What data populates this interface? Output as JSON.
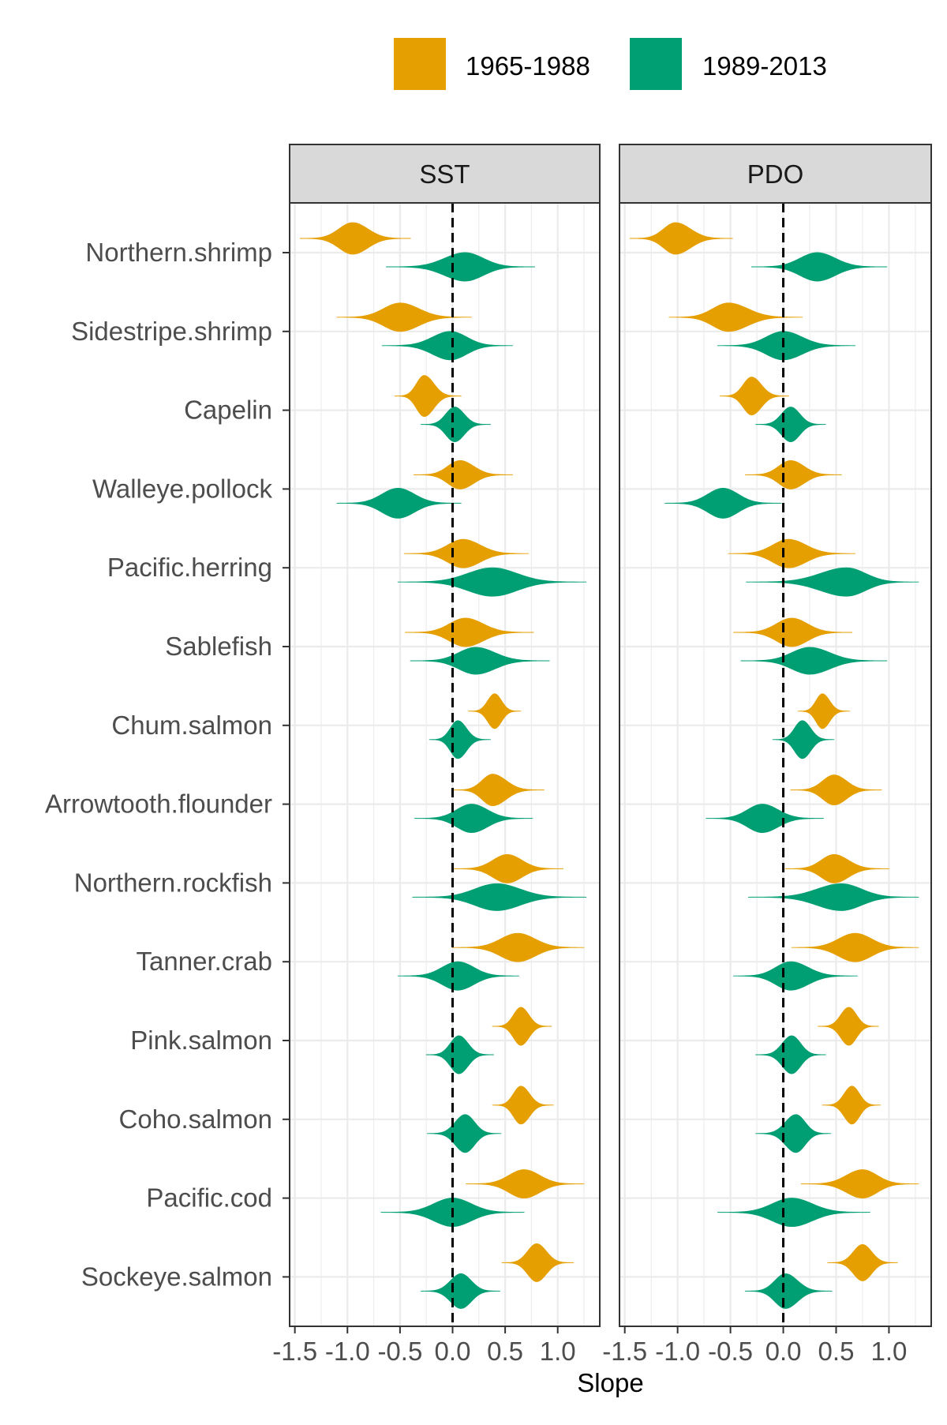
{
  "chart_data": {
    "type": "violin",
    "xlabel": "Slope",
    "ylabel": "",
    "xlim": [
      -1.55,
      1.4
    ],
    "x_ticks": [
      -1.5,
      -1.0,
      -0.5,
      0.0,
      0.5,
      1.0
    ],
    "x_tick_labels": [
      "-1.5",
      "-1.0",
      "-0.5",
      "0.0",
      "0.5",
      "1.0"
    ],
    "reference_line": 0,
    "grid": true,
    "legend": {
      "position": "top",
      "entries": [
        {
          "label": "1965-1988",
          "color": "#E69F00"
        },
        {
          "label": "1989-2013",
          "color": "#009E73"
        }
      ]
    },
    "panels": [
      {
        "title": "SST",
        "series": [
          {
            "name": "1965-1988",
            "color": "#E69F00",
            "values": [
              {
                "species": "Northern.shrimp",
                "median": -0.95,
                "low": -1.45,
                "high": -0.4,
                "width": 1.0
              },
              {
                "species": "Sidestripe.shrimp",
                "median": -0.5,
                "low": -1.1,
                "high": 0.18,
                "width": 0.9
              },
              {
                "species": "Capelin",
                "median": -0.27,
                "low": -0.55,
                "high": 0.08,
                "width": 1.3
              },
              {
                "species": "Walleye.pollock",
                "median": 0.07,
                "low": -0.37,
                "high": 0.57,
                "width": 0.9
              },
              {
                "species": "Pacific.herring",
                "median": 0.1,
                "low": -0.46,
                "high": 0.72,
                "width": 0.9
              },
              {
                "species": "Sablefish",
                "median": 0.12,
                "low": -0.45,
                "high": 0.77,
                "width": 0.9
              },
              {
                "species": "Chum.salmon",
                "median": 0.4,
                "low": 0.15,
                "high": 0.65,
                "width": 1.1
              },
              {
                "species": "Arrowtooth.flounder",
                "median": 0.38,
                "low": 0.0,
                "high": 0.87,
                "width": 1.0
              },
              {
                "species": "Northern.rockfish",
                "median": 0.52,
                "low": 0.0,
                "high": 1.05,
                "width": 0.9
              },
              {
                "species": "Tanner.crab",
                "median": 0.62,
                "low": 0.0,
                "high": 1.25,
                "width": 0.9
              },
              {
                "species": "Pink.salmon",
                "median": 0.65,
                "low": 0.38,
                "high": 0.94,
                "width": 1.2
              },
              {
                "species": "Coho.salmon",
                "median": 0.65,
                "low": 0.38,
                "high": 0.96,
                "width": 1.2
              },
              {
                "species": "Pacific.cod",
                "median": 0.68,
                "low": 0.13,
                "high": 1.25,
                "width": 0.9
              },
              {
                "species": "Sockeye.salmon",
                "median": 0.8,
                "low": 0.47,
                "high": 1.15,
                "width": 1.2
              }
            ]
          },
          {
            "name": "1989-2013",
            "color": "#009E73",
            "values": [
              {
                "species": "Northern.shrimp",
                "median": 0.12,
                "low": -0.63,
                "high": 0.78,
                "width": 0.9
              },
              {
                "species": "Sidestripe.shrimp",
                "median": -0.02,
                "low": -0.67,
                "high": 0.57,
                "width": 0.9
              },
              {
                "species": "Capelin",
                "median": 0.02,
                "low": -0.3,
                "high": 0.36,
                "width": 1.1
              },
              {
                "species": "Walleye.pollock",
                "median": -0.52,
                "low": -1.1,
                "high": 0.08,
                "width": 0.95
              },
              {
                "species": "Pacific.herring",
                "median": 0.38,
                "low": -0.52,
                "high": 1.27,
                "width": 0.9
              },
              {
                "species": "Sablefish",
                "median": 0.22,
                "low": -0.4,
                "high": 0.92,
                "width": 0.85
              },
              {
                "species": "Chum.salmon",
                "median": 0.05,
                "low": -0.22,
                "high": 0.36,
                "width": 1.2
              },
              {
                "species": "Arrowtooth.flounder",
                "median": 0.18,
                "low": -0.36,
                "high": 0.76,
                "width": 0.9
              },
              {
                "species": "Northern.rockfish",
                "median": 0.42,
                "low": -0.38,
                "high": 1.27,
                "width": 0.85
              },
              {
                "species": "Tanner.crab",
                "median": 0.05,
                "low": -0.52,
                "high": 0.63,
                "width": 0.9
              },
              {
                "species": "Pink.salmon",
                "median": 0.06,
                "low": -0.25,
                "high": 0.39,
                "width": 1.2
              },
              {
                "species": "Coho.salmon",
                "median": 0.12,
                "low": -0.24,
                "high": 0.46,
                "width": 1.2
              },
              {
                "species": "Pacific.cod",
                "median": 0.0,
                "low": -0.68,
                "high": 0.68,
                "width": 0.9
              },
              {
                "species": "Sockeye.salmon",
                "median": 0.08,
                "low": -0.3,
                "high": 0.45,
                "width": 1.1
              }
            ]
          }
        ]
      },
      {
        "title": "PDO",
        "series": [
          {
            "name": "1965-1988",
            "color": "#E69F00",
            "values": [
              {
                "species": "Northern.shrimp",
                "median": -1.02,
                "low": -1.45,
                "high": -0.48,
                "width": 1.0
              },
              {
                "species": "Sidestripe.shrimp",
                "median": -0.52,
                "low": -1.08,
                "high": 0.18,
                "width": 0.9
              },
              {
                "species": "Capelin",
                "median": -0.3,
                "low": -0.6,
                "high": 0.05,
                "width": 1.2
              },
              {
                "species": "Walleye.pollock",
                "median": 0.07,
                "low": -0.36,
                "high": 0.55,
                "width": 0.9
              },
              {
                "species": "Pacific.herring",
                "median": 0.05,
                "low": -0.52,
                "high": 0.68,
                "width": 0.9
              },
              {
                "species": "Sablefish",
                "median": 0.08,
                "low": -0.47,
                "high": 0.65,
                "width": 0.9
              },
              {
                "species": "Chum.salmon",
                "median": 0.37,
                "low": 0.14,
                "high": 0.63,
                "width": 1.1
              },
              {
                "species": "Arrowtooth.flounder",
                "median": 0.48,
                "low": 0.07,
                "high": 0.93,
                "width": 0.95
              },
              {
                "species": "Northern.rockfish",
                "median": 0.48,
                "low": 0.02,
                "high": 1.0,
                "width": 0.9
              },
              {
                "species": "Tanner.crab",
                "median": 0.68,
                "low": 0.08,
                "high": 1.28,
                "width": 0.9
              },
              {
                "species": "Pink.salmon",
                "median": 0.62,
                "low": 0.33,
                "high": 0.9,
                "width": 1.2
              },
              {
                "species": "Coho.salmon",
                "median": 0.65,
                "low": 0.37,
                "high": 0.92,
                "width": 1.2
              },
              {
                "species": "Pacific.cod",
                "median": 0.75,
                "low": 0.17,
                "high": 1.28,
                "width": 0.9
              },
              {
                "species": "Sockeye.salmon",
                "median": 0.75,
                "low": 0.42,
                "high": 1.08,
                "width": 1.15
              }
            ]
          },
          {
            "name": "1989-2013",
            "color": "#009E73",
            "values": [
              {
                "species": "Northern.shrimp",
                "median": 0.32,
                "low": -0.3,
                "high": 0.98,
                "width": 0.9
              },
              {
                "species": "Sidestripe.shrimp",
                "median": 0.0,
                "low": -0.62,
                "high": 0.68,
                "width": 0.9
              },
              {
                "species": "Capelin",
                "median": 0.07,
                "low": -0.26,
                "high": 0.4,
                "width": 1.1
              },
              {
                "species": "Walleye.pollock",
                "median": -0.57,
                "low": -1.12,
                "high": -0.02,
                "width": 0.95
              },
              {
                "species": "Pacific.herring",
                "median": 0.6,
                "low": -0.35,
                "high": 1.28,
                "width": 0.9
              },
              {
                "species": "Sablefish",
                "median": 0.25,
                "low": -0.4,
                "high": 0.98,
                "width": 0.85
              },
              {
                "species": "Chum.salmon",
                "median": 0.18,
                "low": -0.1,
                "high": 0.48,
                "width": 1.2
              },
              {
                "species": "Arrowtooth.flounder",
                "median": -0.2,
                "low": -0.73,
                "high": 0.38,
                "width": 0.9
              },
              {
                "species": "Northern.rockfish",
                "median": 0.55,
                "low": -0.33,
                "high": 1.28,
                "width": 0.85
              },
              {
                "species": "Tanner.crab",
                "median": 0.07,
                "low": -0.47,
                "high": 0.7,
                "width": 0.9
              },
              {
                "species": "Pink.salmon",
                "median": 0.08,
                "low": -0.26,
                "high": 0.4,
                "width": 1.2
              },
              {
                "species": "Coho.salmon",
                "median": 0.12,
                "low": -0.26,
                "high": 0.45,
                "width": 1.2
              },
              {
                "species": "Pacific.cod",
                "median": 0.08,
                "low": -0.62,
                "high": 0.82,
                "width": 0.9
              },
              {
                "species": "Sockeye.salmon",
                "median": 0.02,
                "low": -0.36,
                "high": 0.46,
                "width": 1.1
              }
            ]
          }
        ]
      }
    ],
    "categories": [
      "Northern.shrimp",
      "Sidestripe.shrimp",
      "Capelin",
      "Walleye.pollock",
      "Pacific.herring",
      "Sablefish",
      "Chum.salmon",
      "Arrowtooth.flounder",
      "Northern.rockfish",
      "Tanner.crab",
      "Pink.salmon",
      "Coho.salmon",
      "Pacific.cod",
      "Sockeye.salmon"
    ]
  }
}
